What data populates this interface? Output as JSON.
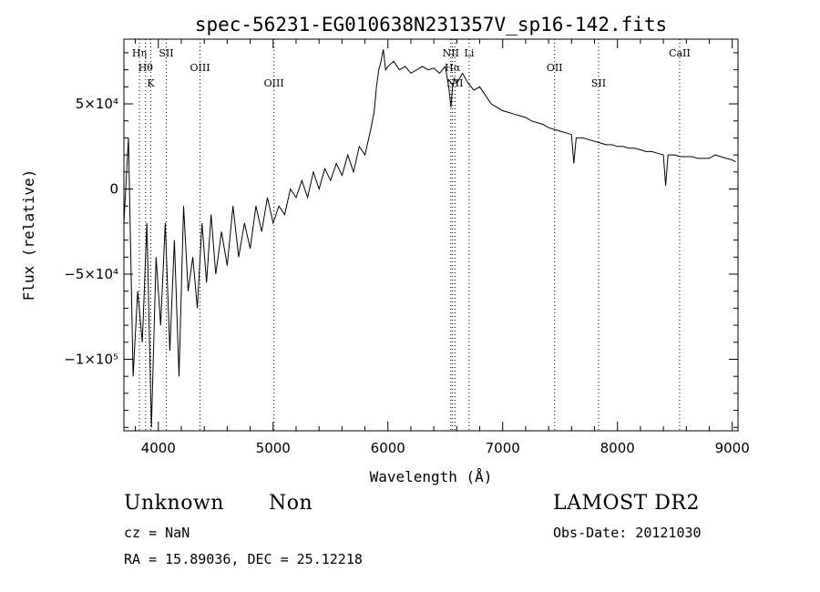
{
  "chart_data": {
    "type": "line",
    "title": "spec-56231-EG010638N231357V_sp16-142.fits",
    "xlabel": "Wavelength (Å)",
    "ylabel": "Flux (relative)",
    "xlim": [
      3700,
      9050
    ],
    "ylim": [
      -142000,
      88000
    ],
    "xticks": [
      {
        "value": 4000,
        "label": "4000"
      },
      {
        "value": 5000,
        "label": "5000"
      },
      {
        "value": 6000,
        "label": "6000"
      },
      {
        "value": 7000,
        "label": "7000"
      },
      {
        "value": 8000,
        "label": "8000"
      },
      {
        "value": 9000,
        "label": "9000"
      }
    ],
    "yticks": [
      {
        "value": 50000,
        "label": "5×10⁴"
      },
      {
        "value": 0,
        "label": "0"
      },
      {
        "value": -50000,
        "label": "−5×10⁴"
      },
      {
        "value": -100000,
        "label": "−1×10⁵"
      }
    ],
    "grid": false,
    "series": [
      {
        "x": [
          3700,
          3740,
          3780,
          3820,
          3860,
          3900,
          3940,
          3980,
          4020,
          4060,
          4100,
          4140,
          4180,
          4220,
          4260,
          4300,
          4340,
          4380,
          4420,
          4460,
          4500,
          4550,
          4600,
          4650,
          4700,
          4750,
          4800,
          4850,
          4900,
          4950,
          5000,
          5050,
          5100,
          5150,
          5200,
          5250,
          5300,
          5350,
          5400,
          5450,
          5500,
          5550,
          5600,
          5650,
          5700,
          5750,
          5800,
          5850,
          5880,
          5900,
          5920,
          5940,
          5960,
          5980,
          6000,
          6050,
          6100,
          6150,
          6200,
          6250,
          6300,
          6350,
          6400,
          6450,
          6500,
          6530,
          6550,
          6563,
          6580,
          6600,
          6650,
          6700,
          6750,
          6800,
          6850,
          6900,
          6950,
          7000,
          7050,
          7100,
          7150,
          7200,
          7250,
          7300,
          7350,
          7400,
          7450,
          7500,
          7550,
          7600,
          7620,
          7640,
          7700,
          7750,
          7800,
          7850,
          7900,
          7950,
          8000,
          8050,
          8100,
          8150,
          8200,
          8250,
          8300,
          8350,
          8400,
          8420,
          8440,
          8500,
          8550,
          8600,
          8650,
          8700,
          8750,
          8800,
          8850,
          8900,
          8950,
          9000,
          9030
        ],
        "y": [
          -20000,
          30000,
          -110000,
          -60000,
          -90000,
          -20000,
          -140000,
          -40000,
          -80000,
          -20000,
          -95000,
          -30000,
          -110000,
          -10000,
          -60000,
          -40000,
          -70000,
          -20000,
          -55000,
          -15000,
          -50000,
          -25000,
          -45000,
          -10000,
          -40000,
          -20000,
          -35000,
          -10000,
          -25000,
          -5000,
          -20000,
          -10000,
          -15000,
          0,
          -5000,
          5000,
          -5000,
          10000,
          0,
          12000,
          5000,
          15000,
          8000,
          20000,
          10000,
          25000,
          20000,
          35000,
          45000,
          60000,
          70000,
          75000,
          82000,
          70000,
          72000,
          75000,
          70000,
          72000,
          68000,
          70000,
          72000,
          70000,
          71000,
          68000,
          72000,
          60000,
          48000,
          60000,
          65000,
          62000,
          68000,
          62000,
          58000,
          60000,
          55000,
          50000,
          48000,
          46000,
          45000,
          44000,
          43000,
          42000,
          40000,
          39000,
          38000,
          36000,
          35000,
          34000,
          33000,
          32000,
          15000,
          30000,
          30000,
          29000,
          28000,
          27000,
          26000,
          26000,
          25000,
          25000,
          24000,
          24000,
          23000,
          22000,
          22000,
          21000,
          20000,
          2000,
          20000,
          20000,
          19000,
          19000,
          19000,
          18000,
          18000,
          18000,
          20000,
          19000,
          18000,
          17000,
          16000
        ]
      }
    ],
    "lines": [
      {
        "wave": 3835,
        "label": "Hη"
      },
      {
        "wave": 3889,
        "label": "Hθ"
      },
      {
        "wave": 3934,
        "label": "K"
      },
      {
        "wave": 4069,
        "label": "SII"
      },
      {
        "wave": 4363,
        "label": "OIII"
      },
      {
        "wave": 5007,
        "label": "OIII"
      },
      {
        "wave": 6548,
        "label": "NII"
      },
      {
        "wave": 6563,
        "label": "Hα"
      },
      {
        "wave": 6584,
        "label": "NII"
      },
      {
        "wave": 6708,
        "label": "Li"
      },
      {
        "wave": 7452,
        "label": "OII"
      },
      {
        "wave": 7835,
        "label": "SII"
      },
      {
        "wave": 8542,
        "label": "CaII"
      }
    ]
  },
  "info": {
    "class": "Unknown",
    "subclass": "Non",
    "survey": "LAMOST DR2",
    "cz": "cz = NaN",
    "obs_date": "Obs-Date: 20121030",
    "radec": "RA =   15.89036, DEC =   25.12218"
  }
}
